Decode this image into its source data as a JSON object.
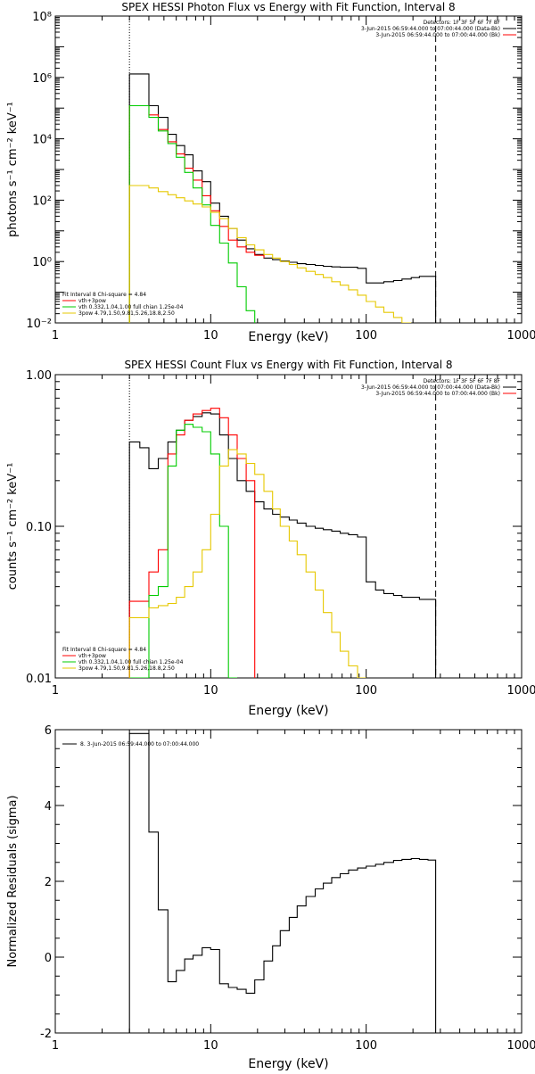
{
  "chart_data": [
    {
      "type": "line",
      "title": "SPEX HESSI Photon Flux vs Energy with Fit Function, Interval 8",
      "xlabel": "Energy (keV)",
      "ylabel": "photons s⁻¹ cm⁻² keV⁻¹",
      "xscale": "log",
      "yscale": "log",
      "xlim": [
        1,
        1000
      ],
      "ylim": [
        0.01,
        100000000
      ],
      "xticks": [
        1,
        10,
        100,
        1000
      ],
      "xtick_labels": [
        "1",
        "10",
        "100",
        "1000"
      ],
      "yticks": [
        0.01,
        1,
        100,
        10000,
        1000000,
        100000000
      ],
      "ytick_labels": [
        "10⁻²",
        "10⁰",
        "10²",
        "10⁴",
        "10⁶",
        "10⁸"
      ],
      "vlines": [
        {
          "x": 3,
          "style": "dotted"
        },
        {
          "x": 280,
          "style": "dashed"
        }
      ],
      "legend_topright": [
        "Detectors: 1F 3F 5F 6F 7F 8F",
        "3-Jun-2015 06:59:44.000 to 07:00:44.000 (Data-Bk)",
        "3-Jun-2015 06:59:44.000 to 07:00:44.000 (Bk)"
      ],
      "legend_bottomleft": [
        "Fit Interval 8   Chi-square = 4.84",
        "vth+3pow",
        "vth 0.332,1.04,1.00  full chian 1.25e-04",
        "3pow 4.79,1.50,9.81,5.26,18.8,2.50"
      ],
      "series": [
        {
          "name": "(Data-Bk)",
          "color": "#000000",
          "edges": [
            3,
            4,
            4.6,
            5.3,
            6,
            6.8,
            7.7,
            8.8,
            10,
            11.4,
            13,
            14.8,
            16.9,
            19.2,
            22,
            25,
            28,
            32,
            36,
            41,
            47,
            53,
            60,
            68,
            77,
            88,
            100,
            115,
            130,
            150,
            170,
            195,
            220,
            250,
            280
          ],
          "values": [
            1300000,
            120000,
            50000,
            14000,
            6000,
            3000,
            900,
            400,
            80,
            30,
            12,
            5,
            2.6,
            1.7,
            1.3,
            1.15,
            1.05,
            0.95,
            0.85,
            0.8,
            0.75,
            0.7,
            0.67,
            0.65,
            0.65,
            0.6,
            0.2,
            0.2,
            0.22,
            0.24,
            0.27,
            0.3,
            0.33,
            0.33
          ]
        },
        {
          "name": "vth+3pow",
          "color": "#ff0000",
          "edges": [
            3,
            4,
            4.6,
            5.3,
            6,
            6.8,
            7.7,
            8.8,
            10,
            11.4,
            13,
            14.8,
            16.9,
            19.2,
            22
          ],
          "values": [
            120000,
            60000,
            20000,
            8000,
            3200,
            1100,
            450,
            140,
            45,
            14,
            5,
            3,
            2,
            1.6,
            1.3
          ]
        },
        {
          "name": "vth",
          "color": "#00cc00",
          "edges": [
            3,
            4,
            4.6,
            5.3,
            6,
            6.8,
            7.7,
            8.8,
            10,
            11.4,
            13,
            14.8,
            16.9,
            19.2
          ],
          "values": [
            120000,
            50000,
            18000,
            7000,
            2500,
            800,
            250,
            70,
            15,
            4,
            0.9,
            0.15,
            0.025
          ]
        },
        {
          "name": "3pow",
          "color": "#e6c800",
          "edges": [
            3,
            4,
            4.6,
            5.3,
            6,
            6.8,
            7.7,
            8.8,
            10,
            11.4,
            13,
            14.8,
            16.9,
            19.2,
            22,
            25,
            28,
            32,
            36,
            41,
            47,
            53,
            60,
            68,
            77,
            88,
            100,
            115,
            130,
            150,
            170,
            195
          ],
          "values": [
            300,
            250,
            190,
            150,
            120,
            95,
            75,
            60,
            40,
            25,
            12,
            6,
            3.5,
            2.4,
            1.7,
            1.3,
            1,
            0.8,
            0.62,
            0.48,
            0.38,
            0.3,
            0.22,
            0.17,
            0.12,
            0.08,
            0.05,
            0.033,
            0.022,
            0.015,
            0.01
          ]
        }
      ]
    },
    {
      "type": "line",
      "title": "SPEX HESSI Count Flux vs Energy with Fit Function, Interval 8",
      "xlabel": "Energy (keV)",
      "ylabel": "counts s⁻¹ cm⁻² keV⁻¹",
      "xscale": "log",
      "yscale": "log",
      "xlim": [
        1,
        1000
      ],
      "ylim": [
        0.01,
        1.0
      ],
      "xticks": [
        1,
        10,
        100,
        1000
      ],
      "xtick_labels": [
        "1",
        "10",
        "100",
        "1000"
      ],
      "yticks": [
        0.01,
        0.1,
        1.0
      ],
      "ytick_labels": [
        "0.01",
        "0.10",
        "1.00"
      ],
      "vlines": [
        {
          "x": 3,
          "style": "dotted"
        },
        {
          "x": 280,
          "style": "dashed"
        }
      ],
      "legend_topright": [
        "Detectors: 1F 3F 5F 6F 7F 8F",
        "3-Jun-2015 06:59:44.000 to 07:00:44.000 (Data-Bk)",
        "3-Jun-2015 06:59:44.000 to 07:00:44.000 (Bk)"
      ],
      "legend_bottomleft": [
        "Fit Interval 8   Chi-square = 4.84",
        "vth+3pow",
        "vth 0.332,1.04,1.00  full chian 1.25e-04",
        "3pow 4.79,1.50,9.81,5.26,18.8,2.50"
      ],
      "series": [
        {
          "name": "(Data-Bk)",
          "color": "#000000",
          "edges": [
            3,
            3.5,
            4,
            4.6,
            5.3,
            6,
            6.8,
            7.7,
            8.8,
            10,
            11.4,
            13,
            14.8,
            16.9,
            19.2,
            22,
            25,
            28,
            32,
            36,
            41,
            47,
            53,
            60,
            68,
            77,
            88,
            100,
            115,
            130,
            150,
            170,
            195,
            220,
            250,
            280
          ],
          "values": [
            0.36,
            0.33,
            0.24,
            0.28,
            0.36,
            0.43,
            0.5,
            0.53,
            0.56,
            0.55,
            0.4,
            0.28,
            0.2,
            0.17,
            0.145,
            0.13,
            0.12,
            0.115,
            0.11,
            0.105,
            0.1,
            0.097,
            0.095,
            0.093,
            0.09,
            0.088,
            0.085,
            0.043,
            0.038,
            0.036,
            0.035,
            0.034,
            0.034,
            0.033,
            0.033
          ]
        },
        {
          "name": "vth+3pow",
          "color": "#ff0000",
          "edges": [
            3,
            4,
            4.6,
            5.3,
            6,
            6.8,
            7.7,
            8.8,
            10,
            11.4,
            13,
            14.8,
            16.9,
            19.2
          ],
          "values": [
            0.032,
            0.05,
            0.07,
            0.3,
            0.4,
            0.5,
            0.55,
            0.58,
            0.6,
            0.52,
            0.4,
            0.28,
            0.2
          ]
        },
        {
          "name": "vth",
          "color": "#00cc00",
          "edges": [
            3,
            4,
            4.6,
            5.3,
            6,
            6.8,
            7.7,
            8.8,
            10,
            11.4,
            13,
            14.8
          ],
          "values": [
            0.01,
            0.035,
            0.04,
            0.25,
            0.43,
            0.47,
            0.45,
            0.42,
            0.3,
            0.1,
            0.01
          ]
        },
        {
          "name": "3pow",
          "color": "#e6c800",
          "edges": [
            3,
            4,
            4.6,
            5.3,
            6,
            6.8,
            7.7,
            8.8,
            10,
            11.4,
            13,
            14.8,
            16.9,
            19.2,
            22,
            25,
            28,
            32,
            36,
            41,
            47,
            53,
            60,
            68,
            77,
            88,
            100
          ],
          "values": [
            0.025,
            0.029,
            0.03,
            0.031,
            0.034,
            0.04,
            0.05,
            0.07,
            0.12,
            0.25,
            0.32,
            0.3,
            0.26,
            0.22,
            0.17,
            0.13,
            0.1,
            0.08,
            0.065,
            0.05,
            0.038,
            0.027,
            0.02,
            0.015,
            0.012,
            0.01
          ]
        }
      ]
    },
    {
      "type": "line",
      "title": "",
      "xlabel": "Energy (keV)",
      "ylabel": "Normalized Residuals (sigma)",
      "xscale": "log",
      "yscale": "linear",
      "xlim": [
        1,
        1000
      ],
      "ylim": [
        -2,
        6
      ],
      "xticks": [
        1,
        10,
        100,
        1000
      ],
      "xtick_labels": [
        "1",
        "10",
        "100",
        "1000"
      ],
      "yticks": [
        -2,
        0,
        2,
        4,
        6
      ],
      "ytick_labels": [
        "-2",
        "0",
        "2",
        "4",
        "6"
      ],
      "legend_topleft": [
        "8.  3-Jun-2015 06:59:44.000 to 07:00:44.000"
      ],
      "series": [
        {
          "name": "8.",
          "color": "#000000",
          "edges": [
            3,
            4,
            4.6,
            5.3,
            6,
            6.8,
            7.7,
            8.8,
            10,
            11.4,
            13,
            14.8,
            16.9,
            19.2,
            22,
            25,
            28,
            32,
            36,
            41,
            47,
            53,
            60,
            68,
            77,
            88,
            100,
            115,
            130,
            150,
            170,
            195,
            220,
            250,
            280
          ],
          "values": [
            5.9,
            3.3,
            1.25,
            -0.65,
            -0.35,
            -0.05,
            0.05,
            0.25,
            0.2,
            -0.7,
            -0.8,
            -0.85,
            -0.95,
            -0.6,
            -0.1,
            0.3,
            0.7,
            1.05,
            1.35,
            1.6,
            1.8,
            1.95,
            2.1,
            2.2,
            2.3,
            2.35,
            2.4,
            2.45,
            2.5,
            2.55,
            2.58,
            2.6,
            2.58,
            2.56
          ]
        }
      ]
    }
  ]
}
